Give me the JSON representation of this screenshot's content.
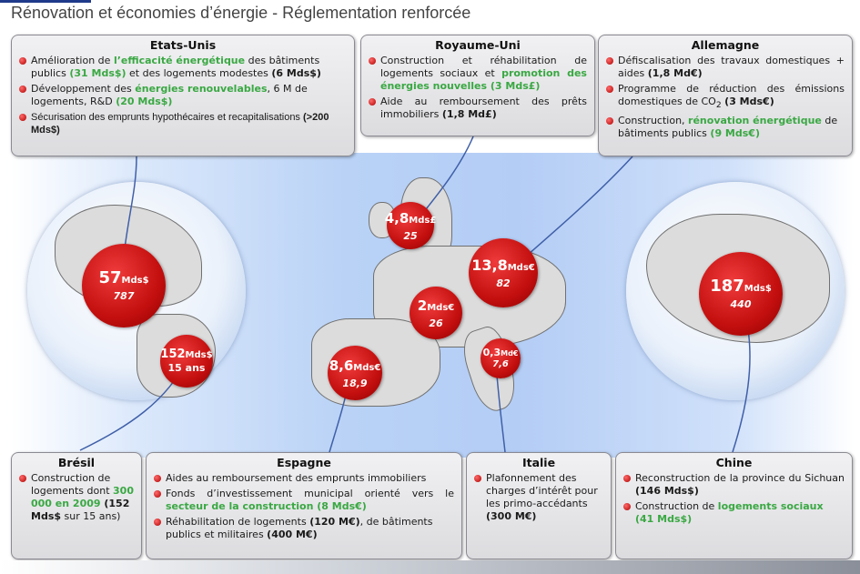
{
  "header": {
    "title": "Rénovation et économies d’énergie - Réglementation renforcée"
  },
  "colors": {
    "accent_green": "#3aa843",
    "bubble_red": "#c40f0f"
  },
  "boxes": {
    "usa": {
      "title": "Etats-Unis",
      "i1": {
        "a": "Amélioration de ",
        "g": "l’efficacité énergétique",
        "b": " des bâtiments publics ",
        "g2": "(31 Mds$)",
        "c": " et des logements modestes ",
        "d": "(6 Mds$)"
      },
      "i2": {
        "a": "Développement des ",
        "g": "énergies renouvelables",
        "b": ", 6 M de logements, R&D ",
        "g2": "(20 Mds$)"
      },
      "i3": {
        "a": "Sécurisation des emprunts hypothécaires et recapitalisations ",
        "d": "(>200 Mds$)"
      }
    },
    "uk": {
      "title": "Royaume-Uni",
      "i1": {
        "a": "Construction et réhabilitation de logements sociaux et ",
        "g": "promotion des énergies nouvelles",
        "g2": " (3 Mds£)"
      },
      "i2": {
        "a": "Aide au remboursement des prêts immobiliers ",
        "d": "(1,8 Md£)"
      }
    },
    "germany": {
      "title": "Allemagne",
      "i1": {
        "a": "Défiscalisation des travaux domestiques + aides ",
        "d": "(1,8 Md€)"
      },
      "i2": {
        "a": "Programme de réduction des émissions domestiques de CO",
        "sub": "2",
        "b": " ",
        "d": "(3 Mds€)"
      },
      "i3": {
        "a": "Construction, ",
        "g": "rénovation énergétique",
        "b": " de bâtiments publics ",
        "g2": "(9 Mds€)"
      }
    },
    "brazil": {
      "title": "Brésil",
      "i1": {
        "a": "Construction de logements dont ",
        "g": "300 000 en 2009",
        "d": " (152 Mds$",
        "c": " sur 15 ans)"
      }
    },
    "spain": {
      "title": "Espagne",
      "i1": {
        "a": "Aides au remboursement des emprunts immobiliers"
      },
      "i2": {
        "a": "Fonds d’investissement municipal orienté vers le ",
        "g": "secteur de la construction",
        "g2": " (8 Mds€)"
      },
      "i3": {
        "a": "Réhabilitation de logements ",
        "d": "(120 M€)",
        "b": ", de bâtiments publics et militaires ",
        "d2": "(400 M€)"
      }
    },
    "italy": {
      "title": "Italie",
      "i1": {
        "a": "Plafonnement des charges d’intérêt pour les primo-accédants ",
        "d": "(300 M€)"
      }
    },
    "china": {
      "title": "Chine",
      "i1": {
        "a": "Reconstruction de la province du Sichuan ",
        "d": "(146 Mds$)"
      },
      "i2": {
        "a": "Construction de ",
        "g": "logements sociaux",
        "g2": " (41 Mds$)"
      }
    }
  },
  "bubbles": {
    "usa": {
      "amount": "57",
      "unit": "Mds$",
      "sub": "787"
    },
    "brazil": {
      "amount": "152",
      "unit": "Mds$",
      "sub": "15 ans"
    },
    "uk": {
      "amount": "4,8",
      "unit": "Mds£",
      "sub": "25"
    },
    "germany": {
      "amount": "13,8",
      "unit": "Mds€",
      "sub": "82"
    },
    "france": {
      "amount": "2",
      "unit": "Mds€",
      "sub": "26"
    },
    "spain": {
      "amount": "8,6",
      "unit": "Mds€",
      "sub": "18,9"
    },
    "italy": {
      "amount": "0,3",
      "unit": "Md€",
      "sub": "7,6"
    },
    "china": {
      "amount": "187",
      "unit": "Mds$",
      "sub": "440"
    }
  }
}
